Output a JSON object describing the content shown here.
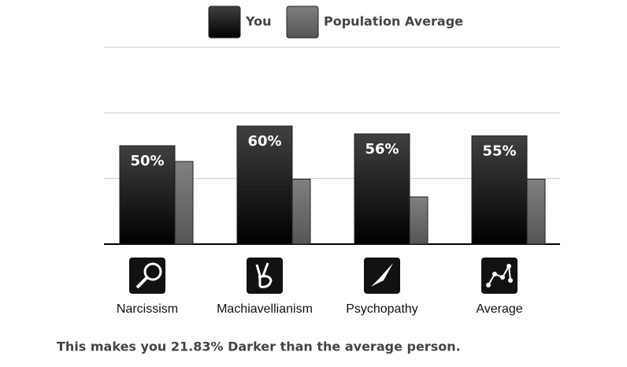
{
  "chart_data": {
    "type": "bar",
    "categories": [
      "Narcissism",
      "Machiavellianism",
      "Psychopathy",
      "Average"
    ],
    "series": [
      {
        "name": "You",
        "color": "#000000",
        "values": [
          50,
          60,
          56,
          55
        ],
        "value_labels": [
          "50%",
          "60%",
          "56%",
          "55%"
        ]
      },
      {
        "name": "Population Average",
        "color": "#555555",
        "values": [
          42,
          33,
          24,
          33
        ]
      }
    ],
    "ylim": [
      0,
      100
    ],
    "yticks": [
      0,
      33.33,
      66.67,
      100
    ],
    "grid": true,
    "footer": "This makes you 21.83% Darker than the average person."
  }
}
